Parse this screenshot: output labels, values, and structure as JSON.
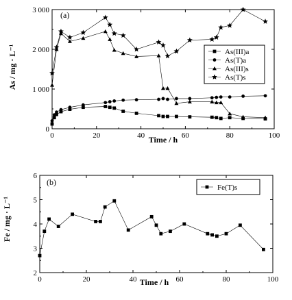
{
  "chart_data": [
    {
      "type": "scatter",
      "panel_label": "(a)",
      "xlabel": "Time / h",
      "ylabel": "As / mg · L⁻¹",
      "xlim": [
        0,
        100
      ],
      "ylim": [
        0,
        3000
      ],
      "xticks": [
        "0",
        "20",
        "40",
        "60",
        "80",
        "100"
      ],
      "yticks": [
        "0",
        "1 000",
        "2 000",
        "3 000"
      ],
      "legend_position": "right",
      "series": [
        {
          "name": "As(III)a",
          "marker": "square",
          "x": [
            0,
            1,
            2,
            4,
            8,
            14,
            24,
            26,
            28,
            32,
            38,
            48,
            50,
            52,
            56,
            62,
            72,
            74,
            76,
            80,
            86,
            96
          ],
          "y": [
            120,
            280,
            360,
            430,
            490,
            540,
            560,
            540,
            520,
            440,
            390,
            330,
            310,
            310,
            310,
            300,
            290,
            280,
            260,
            280,
            260,
            250
          ]
        },
        {
          "name": "As(T)a",
          "marker": "circle",
          "x": [
            0,
            1,
            2,
            4,
            8,
            14,
            24,
            26,
            28,
            32,
            38,
            48,
            50,
            52,
            56,
            62,
            72,
            74,
            76,
            80,
            86,
            96
          ],
          "y": [
            200,
            350,
            420,
            480,
            540,
            600,
            660,
            680,
            700,
            720,
            730,
            740,
            760,
            740,
            760,
            760,
            780,
            790,
            800,
            800,
            820,
            830
          ]
        },
        {
          "name": "As(III)s",
          "marker": "triangle",
          "x": [
            0,
            2,
            4,
            8,
            14,
            24,
            26,
            28,
            32,
            38,
            48,
            50,
            52,
            56,
            62,
            72,
            74,
            76,
            80,
            86,
            96
          ],
          "y": [
            1100,
            2000,
            2400,
            2200,
            2280,
            2450,
            2250,
            1980,
            1900,
            1820,
            1840,
            1020,
            1020,
            640,
            680,
            680,
            660,
            660,
            380,
            300,
            280
          ]
        },
        {
          "name": "As(T)s",
          "marker": "star",
          "x": [
            0,
            2,
            4,
            8,
            14,
            24,
            26,
            28,
            32,
            38,
            48,
            50,
            52,
            56,
            62,
            72,
            74,
            76,
            80,
            86,
            96
          ],
          "y": [
            1400,
            2050,
            2450,
            2300,
            2420,
            2800,
            2620,
            2400,
            2350,
            2000,
            2180,
            2100,
            1830,
            1950,
            2230,
            2250,
            2300,
            2550,
            2600,
            3000,
            2700
          ]
        }
      ]
    },
    {
      "type": "scatter",
      "panel_label": "(b)",
      "xlabel": "Time / h",
      "ylabel": "Fe / mg · L⁻¹",
      "xlim": [
        0,
        100
      ],
      "ylim": [
        2,
        6
      ],
      "xticks": [
        "0",
        "20",
        "40",
        "60",
        "80",
        "100"
      ],
      "yticks": [
        "2",
        "3",
        "4",
        "5",
        "6"
      ],
      "legend_position": "top-right",
      "series": [
        {
          "name": "Fe(T)s",
          "marker": "square",
          "x": [
            0,
            2,
            4,
            8,
            14,
            24,
            26,
            28,
            32,
            38,
            48,
            50,
            52,
            56,
            62,
            72,
            74,
            76,
            80,
            86,
            96
          ],
          "y": [
            2.7,
            3.7,
            4.2,
            3.9,
            4.4,
            4.1,
            4.1,
            4.7,
            4.95,
            3.75,
            4.3,
            3.95,
            3.6,
            3.7,
            4.0,
            3.6,
            3.55,
            3.5,
            3.6,
            3.95,
            2.95
          ]
        }
      ]
    }
  ]
}
